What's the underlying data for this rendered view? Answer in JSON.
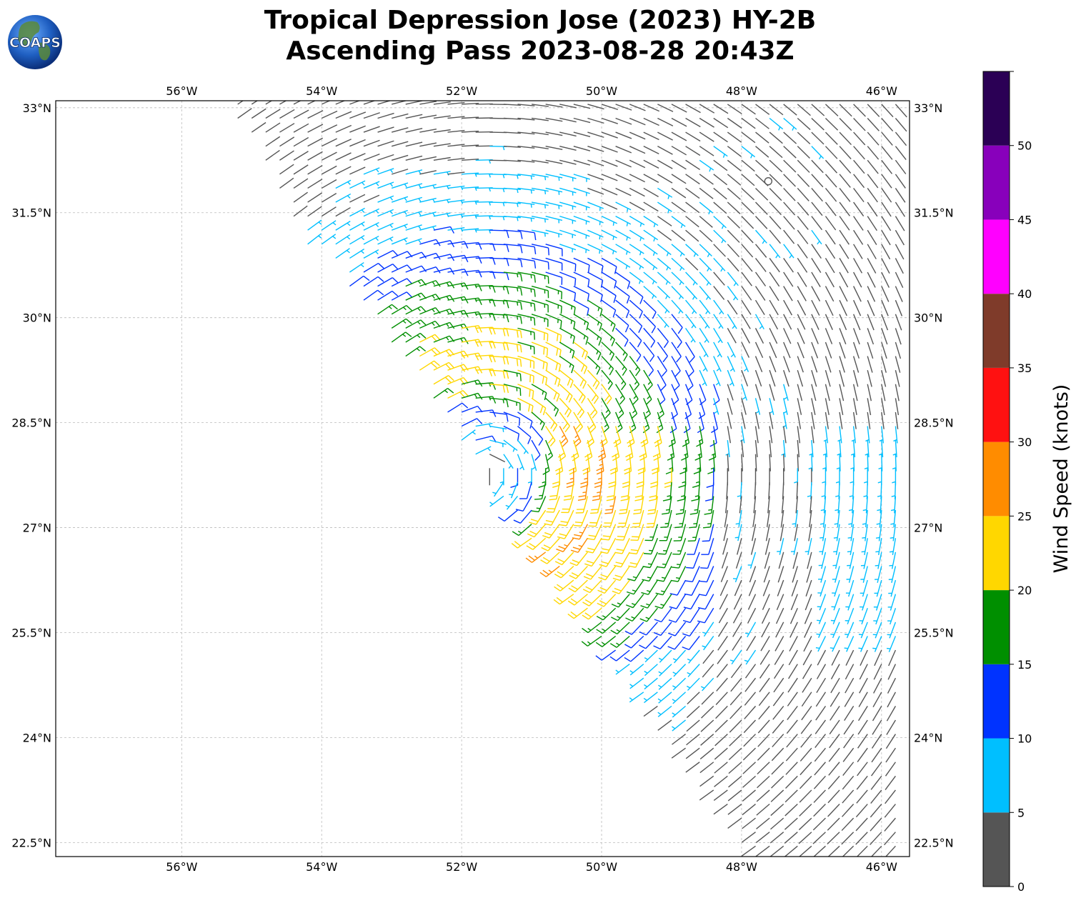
{
  "header": {
    "title_line1": "Tropical Depression Jose (2023) HY-2B",
    "title_line2": "Ascending Pass 2023-08-28 20:43Z",
    "logo_text": "COAPS"
  },
  "map": {
    "lon_range": [
      -57.8,
      -45.6
    ],
    "lat_range": [
      22.3,
      33.1
    ],
    "lon_ticks": [
      {
        "value": -56,
        "label": "56°W"
      },
      {
        "value": -54,
        "label": "54°W"
      },
      {
        "value": -52,
        "label": "52°W"
      },
      {
        "value": -50,
        "label": "50°W"
      },
      {
        "value": -48,
        "label": "48°W"
      },
      {
        "value": -46,
        "label": "46°W"
      }
    ],
    "lat_ticks": [
      {
        "value": 33,
        "label": "33°N"
      },
      {
        "value": 31.5,
        "label": "31.5°N"
      },
      {
        "value": 30,
        "label": "30°N"
      },
      {
        "value": 28.5,
        "label": "28.5°N"
      },
      {
        "value": 27,
        "label": "27°N"
      },
      {
        "value": 25.5,
        "label": "25.5°N"
      },
      {
        "value": 24,
        "label": "24°N"
      },
      {
        "value": 22.5,
        "label": "22.5°N"
      }
    ],
    "grid": true,
    "barbs": {
      "center": [
        -51.7,
        27.85
      ],
      "low_center": [
        -47.7,
        31.95
      ],
      "spacing_deg": 0.2
    }
  },
  "colorbar": {
    "label": "Wind Speed (knots)",
    "ticks": [
      "0",
      "5",
      "10",
      "15",
      "20",
      "25",
      "30",
      "35",
      "40",
      "45",
      "50"
    ],
    "bins": [
      {
        "from": 0,
        "to": 5,
        "color": "#555555"
      },
      {
        "from": 5,
        "to": 10,
        "color": "#00bfff"
      },
      {
        "from": 10,
        "to": 15,
        "color": "#0033ff"
      },
      {
        "from": 15,
        "to": 20,
        "color": "#008f00"
      },
      {
        "from": 20,
        "to": 25,
        "color": "#ffd700"
      },
      {
        "from": 25,
        "to": 30,
        "color": "#ff8c00"
      },
      {
        "from": 30,
        "to": 35,
        "color": "#ff1111"
      },
      {
        "from": 35,
        "to": 40,
        "color": "#7f3b2a"
      },
      {
        "from": 40,
        "to": 45,
        "color": "#ff00ff"
      },
      {
        "from": 45,
        "to": 50,
        "color": "#8800bb"
      },
      {
        "from": 50,
        "to": 55,
        "color": "#2b0055"
      }
    ]
  }
}
